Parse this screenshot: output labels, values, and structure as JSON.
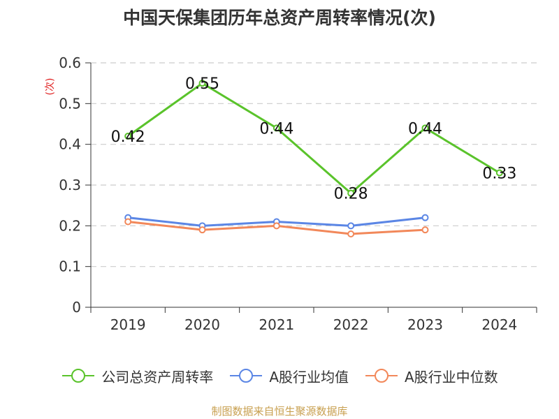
{
  "title": "中国天保集团历年总资产周转率情况(次)",
  "source": "制图数据来自恒生聚源数据库",
  "chart_data": {
    "type": "line",
    "title": "中国天保集团历年总资产周转率情况(次)",
    "ylabel": "(次)",
    "ylim": [
      0,
      0.6
    ],
    "yticks": [
      "0",
      "0.1",
      "0.2",
      "0.3",
      "0.4",
      "0.5",
      "0.6"
    ],
    "categories": [
      "2019",
      "2020",
      "2021",
      "2022",
      "2023",
      "2024"
    ],
    "grid": true,
    "legend_position": "bottom",
    "series": [
      {
        "name": "公司总资产周转率",
        "color": "#5ac32b",
        "values": [
          0.42,
          0.55,
          0.44,
          0.28,
          0.44,
          0.33
        ],
        "labels": [
          "0.42",
          "0.55",
          "0.44",
          "0.28",
          "0.44",
          "0.33"
        ]
      },
      {
        "name": "A股行业均值",
        "color": "#5b86e5",
        "values": [
          0.22,
          0.2,
          0.21,
          0.2,
          0.22,
          null
        ]
      },
      {
        "name": "A股行业中位数",
        "color": "#f2885a",
        "values": [
          0.21,
          0.19,
          0.2,
          0.18,
          0.19,
          null
        ]
      }
    ]
  }
}
